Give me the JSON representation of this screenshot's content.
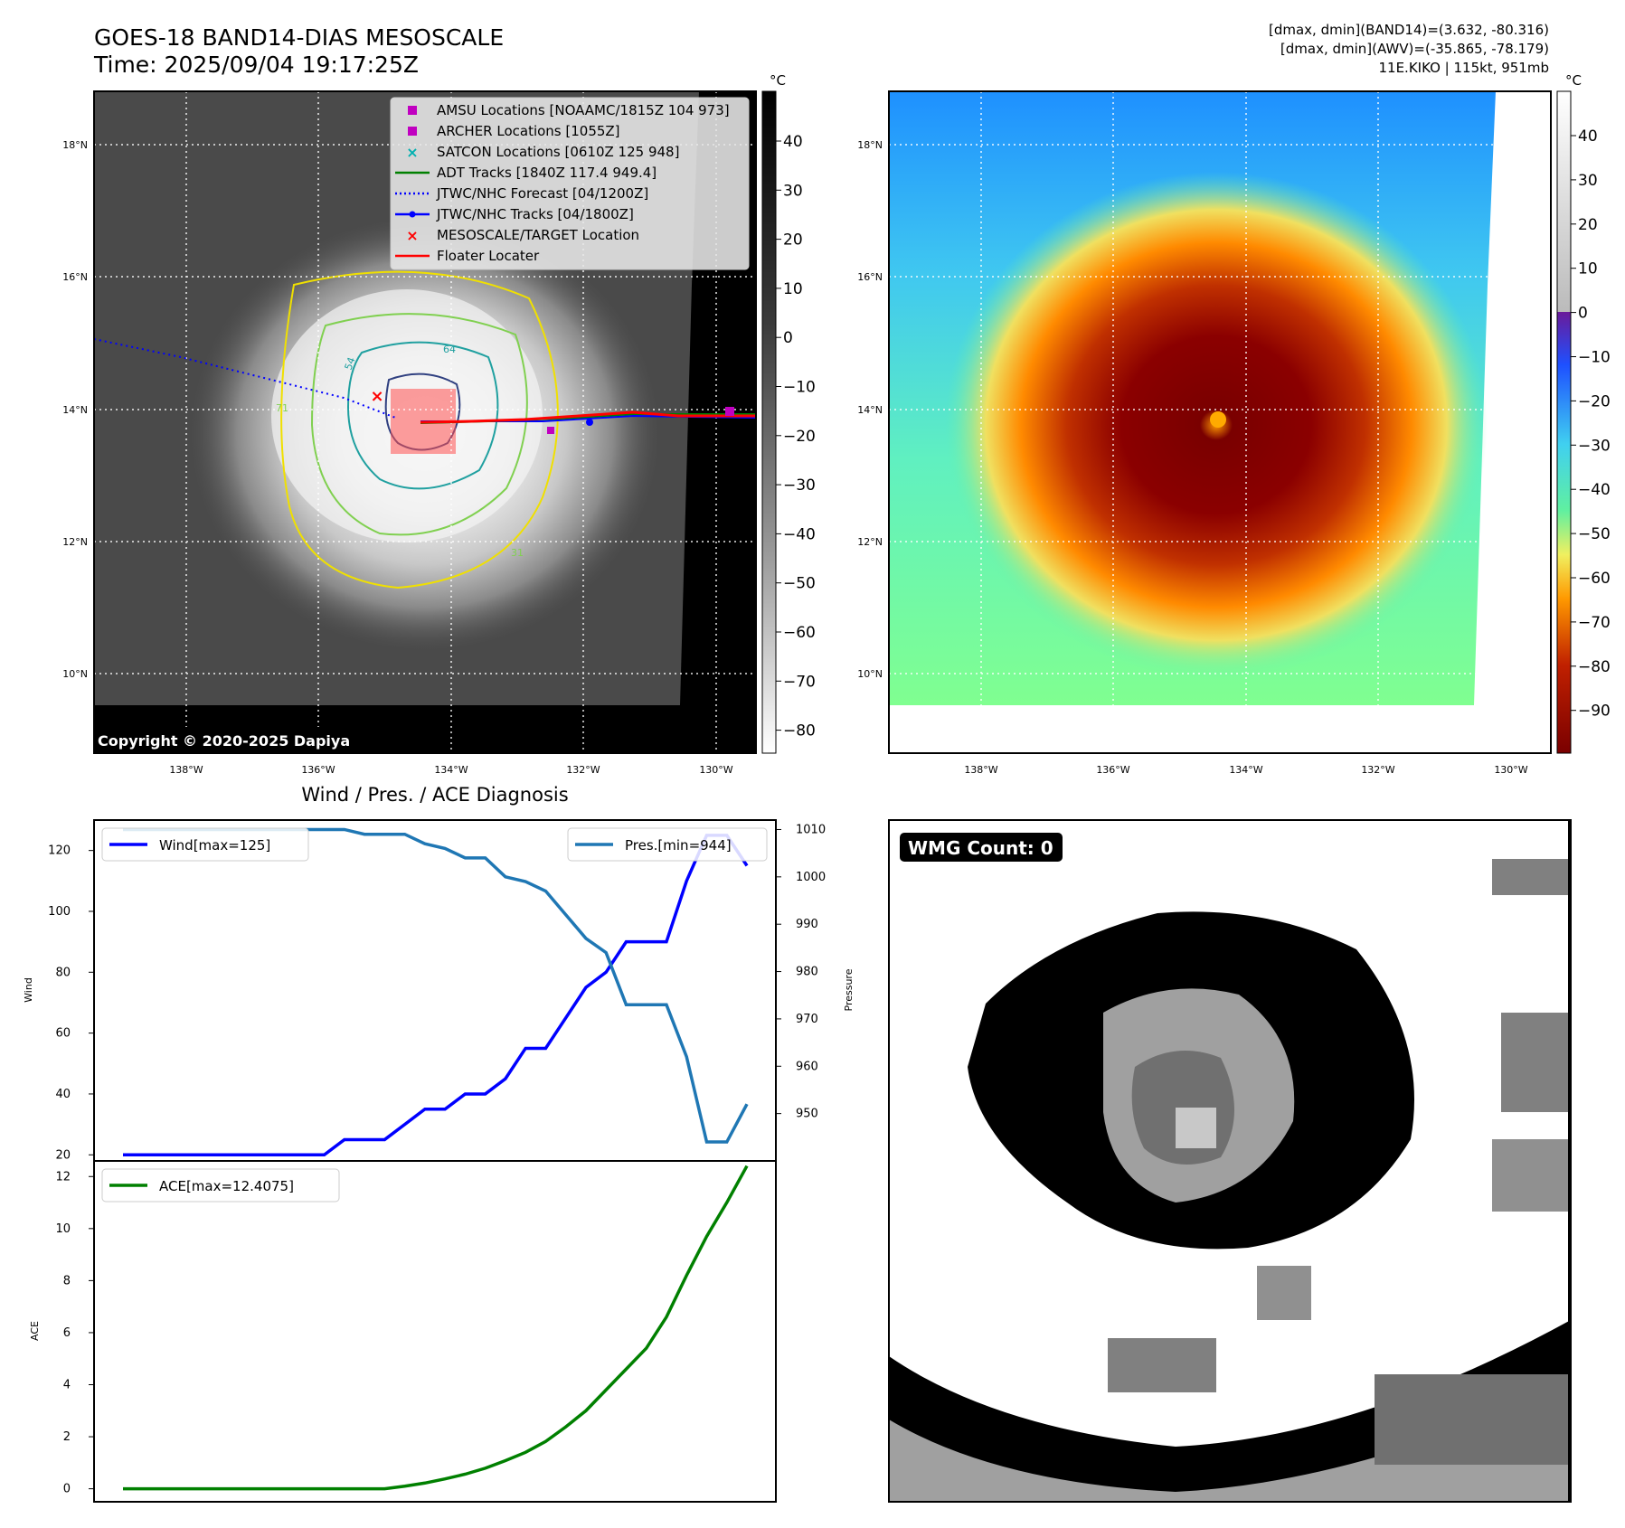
{
  "header": {
    "title_line1": "GOES-18 BAND14-DIAS MESOSCALE",
    "title_line2": "Time: 2025/09/04 19:17:25Z",
    "dmax_band14": "[dmax, dmin](BAND14)=(3.632, -80.316)",
    "dmax_awv": "[dmax, dmin](AWV)=(-35.865, -78.179)",
    "storm": "11E.KIKO | 115kt, 951mb"
  },
  "maps": {
    "lat_labels": [
      "18°N",
      "16°N",
      "14°N",
      "12°N",
      "10°N"
    ],
    "lon_labels": [
      "138°W",
      "136°W",
      "134°W",
      "132°W",
      "130°W"
    ],
    "copyright": "Copyright © 2020-2025 Dapiya",
    "contour_labels": [
      "54",
      "64",
      "71",
      "31"
    ],
    "legend": [
      {
        "label": "AMSU Locations [NOAAMC/1815Z 104 973]",
        "color": "#c000c0",
        "marker": "square"
      },
      {
        "label": "ARCHER Locations [1055Z]",
        "color": "#c000c0",
        "marker": "square"
      },
      {
        "label": "SATCON Locations [0610Z 125 948]",
        "color": "#00b0b0",
        "marker": "x"
      },
      {
        "label": "ADT Tracks [1840Z 117.4 949.4]",
        "color": "#008000",
        "marker": "line"
      },
      {
        "label": "JTWC/NHC Forecast [04/1200Z]",
        "color": "#0000ff",
        "marker": "dotted"
      },
      {
        "label": "JTWC/NHC Tracks [04/1800Z]",
        "color": "#0000ff",
        "marker": "line-dot"
      },
      {
        "label": "MESOSCALE/TARGET Location",
        "color": "#ff0000",
        "marker": "x"
      },
      {
        "label": "Floater Locater",
        "color": "#ff0000",
        "marker": "line"
      }
    ],
    "left_colorbar": {
      "unit": "°C",
      "ticks": [
        "40",
        "30",
        "20",
        "10",
        "0",
        "−10",
        "−20",
        "−30",
        "−40",
        "−50",
        "−60",
        "−70",
        "−80"
      ]
    },
    "right_colorbar": {
      "unit": "°C",
      "ticks": [
        "40",
        "30",
        "20",
        "10",
        "0",
        "−10",
        "−20",
        "−30",
        "−40",
        "−50",
        "−60",
        "−70",
        "−80",
        "−90"
      ]
    }
  },
  "diagnosis": {
    "title": "Wind / Pres. / ACE Diagnosis",
    "wind_ylabel": "Wind",
    "pres_ylabel": "Pressure",
    "ace_ylabel": "ACE",
    "wind_legend": "Wind[max=125]",
    "pres_legend": "Pres.[min=944]",
    "ace_legend": "ACE[max=12.4075]",
    "wind_ticks": [
      "120",
      "100",
      "80",
      "60",
      "40",
      "20"
    ],
    "pres_ticks": [
      "1010",
      "1000",
      "990",
      "980",
      "970",
      "960",
      "950"
    ],
    "ace_ticks": [
      "12",
      "10",
      "8",
      "6",
      "4",
      "2",
      "0"
    ]
  },
  "wmg": {
    "label": "WMG Count: 0"
  },
  "chart_data": [
    {
      "type": "line",
      "title": "Wind / Pres. / ACE Diagnosis",
      "x": [
        0,
        1,
        2,
        3,
        4,
        5,
        6,
        7,
        8,
        9,
        10,
        11,
        12,
        13,
        14,
        15,
        16,
        17,
        18,
        19,
        20,
        21,
        22,
        23,
        24,
        25,
        26,
        27,
        28,
        29,
        30,
        31
      ],
      "series": [
        {
          "name": "Wind[max=125]",
          "axis": "Wind",
          "color": "#0000ff",
          "values": [
            20,
            20,
            20,
            20,
            20,
            20,
            20,
            20,
            20,
            20,
            20,
            25,
            25,
            25,
            30,
            35,
            35,
            40,
            40,
            45,
            55,
            55,
            65,
            75,
            80,
            90,
            90,
            90,
            110,
            125,
            125,
            115
          ]
        },
        {
          "name": "Pres.[min=944]",
          "axis": "Pressure",
          "color": "#1f77b4",
          "values": [
            1010,
            1010,
            1010,
            1010,
            1010,
            1010,
            1010,
            1010,
            1010,
            1010,
            1010,
            1010,
            1009,
            1009,
            1009,
            1007,
            1006,
            1004,
            1004,
            1000,
            999,
            997,
            992,
            987,
            984,
            973,
            973,
            973,
            962,
            944,
            944,
            952
          ]
        }
      ],
      "wind_ylim": [
        18,
        130
      ],
      "pres_ylim": [
        940,
        1012
      ],
      "legend": "top"
    },
    {
      "type": "line",
      "x": [
        0,
        1,
        2,
        3,
        4,
        5,
        6,
        7,
        8,
        9,
        10,
        11,
        12,
        13,
        14,
        15,
        16,
        17,
        18,
        19,
        20,
        21,
        22,
        23,
        24,
        25,
        26,
        27,
        28,
        29,
        30,
        31
      ],
      "series": [
        {
          "name": "ACE[max=12.4075]",
          "color": "#008000",
          "values": [
            0,
            0,
            0,
            0,
            0,
            0,
            0,
            0,
            0,
            0,
            0,
            0,
            0,
            0,
            0.1,
            0.22,
            0.38,
            0.56,
            0.79,
            1.08,
            1.4,
            1.82,
            2.38,
            3.0,
            3.8,
            4.6,
            5.4,
            6.6,
            8.2,
            9.7,
            11.0,
            12.4075
          ]
        }
      ],
      "ylim": [
        -0.5,
        12.6
      ],
      "legend": "top-left"
    }
  ]
}
